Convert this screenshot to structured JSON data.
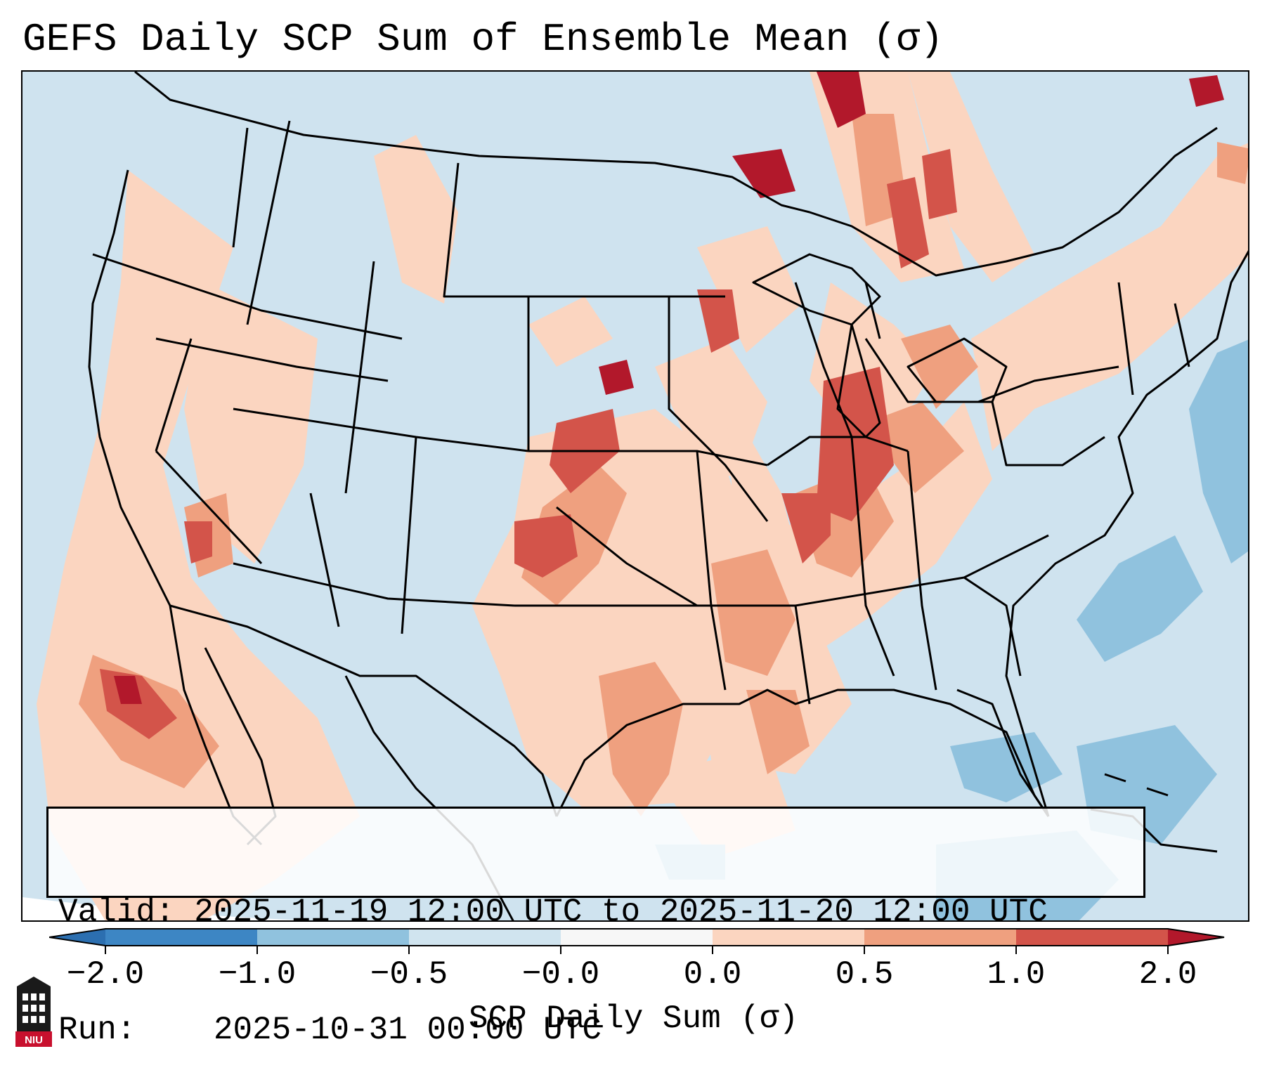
{
  "title": "GEFS Daily SCP Sum of Ensemble Mean (σ)",
  "info": {
    "valid_label": "Valid:",
    "valid_value": "2025-11-19 12:00 UTC to 2025-11-20 12:00 UTC",
    "run_label": "Run:",
    "run_value": "2025-10-31 00:00 UTC"
  },
  "colorbar": {
    "label": "SCP Daily Sum (σ)",
    "ticks": [
      "−2.0",
      "−1.0",
      "−0.5",
      "−0.0",
      "0.0",
      "0.5",
      "1.0",
      "2.0"
    ],
    "bins": [
      {
        "range": "-2.0 to -1.0",
        "color": "#3d86c4"
      },
      {
        "range": "-1.0 to -0.5",
        "color": "#90c2de"
      },
      {
        "range": "-0.5 to -0.0",
        "color": "#d0e4ef"
      },
      {
        "range": "-0.0 to 0.0",
        "color": "#f7f7f7"
      },
      {
        "range": "0.0 to 0.5",
        "color": "#fbd5c0"
      },
      {
        "range": "0.5 to 1.0",
        "color": "#efa07f"
      },
      {
        "range": "1.0 to 2.0",
        "color": "#d3544a"
      },
      {
        "range": "> 2.0",
        "color": "#b2182b"
      }
    ],
    "under_color": "#2c6fb0",
    "over_color": "#b2182b"
  },
  "logo": {
    "text": "NIU",
    "colors": {
      "tower": "#1a1a1a",
      "band": "#c8102e"
    }
  },
  "map": {
    "background_color": "#d0e4ef",
    "outside_color": "#ffffff",
    "region": "Contiguous United States, northern Mexico, Gulf of Mexico, western Atlantic"
  }
}
